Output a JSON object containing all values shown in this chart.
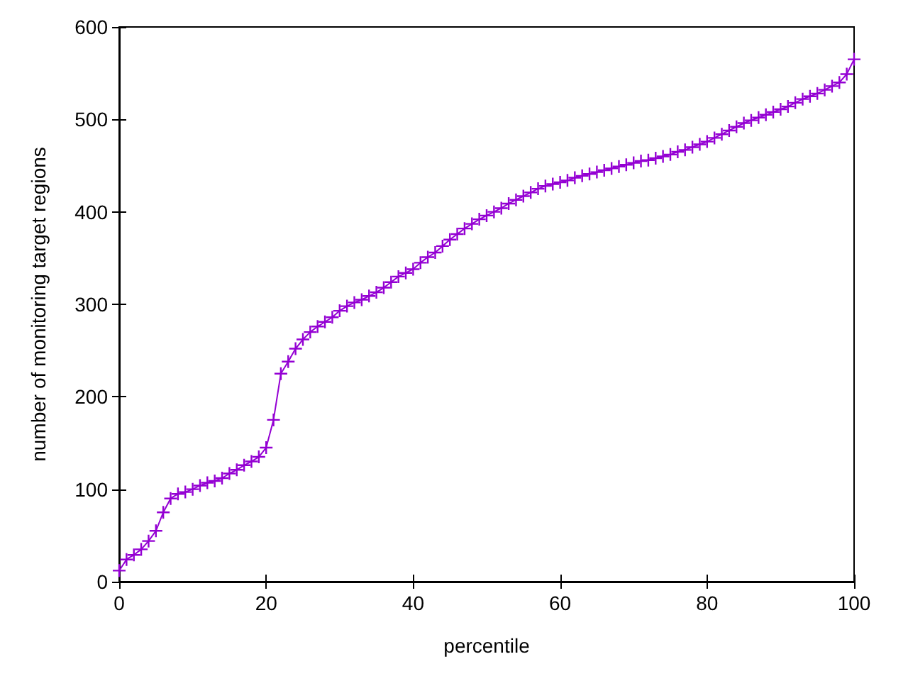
{
  "chart_data": {
    "type": "line",
    "xlabel": "percentile",
    "ylabel": "number of monitoring target regions",
    "x": [
      0,
      1,
      2,
      3,
      4,
      5,
      6,
      7,
      8,
      9,
      10,
      11,
      12,
      13,
      14,
      15,
      16,
      17,
      18,
      19,
      20,
      21,
      22,
      23,
      24,
      25,
      26,
      27,
      28,
      29,
      30,
      31,
      32,
      33,
      34,
      35,
      36,
      37,
      38,
      39,
      40,
      41,
      42,
      43,
      44,
      45,
      46,
      47,
      48,
      49,
      50,
      51,
      52,
      53,
      54,
      55,
      56,
      57,
      58,
      59,
      60,
      61,
      62,
      63,
      64,
      65,
      66,
      67,
      68,
      69,
      70,
      71,
      72,
      73,
      74,
      75,
      76,
      77,
      78,
      79,
      80,
      81,
      82,
      83,
      84,
      85,
      86,
      87,
      88,
      89,
      90,
      91,
      92,
      93,
      94,
      95,
      96,
      97,
      98,
      99,
      100
    ],
    "series": [
      {
        "color": "#9400d3",
        "values": [
          12,
          24,
          29,
          35,
          44,
          55,
          75,
          90,
          95,
          97,
          100,
          104,
          107,
          109,
          112,
          117,
          121,
          126,
          130,
          135,
          145,
          175,
          225,
          238,
          252,
          262,
          270,
          276,
          281,
          286,
          293,
          298,
          302,
          305,
          309,
          313,
          318,
          324,
          330,
          334,
          338,
          345,
          351,
          356,
          363,
          370,
          376,
          382,
          387,
          392,
          396,
          400,
          404,
          409,
          413,
          417,
          421,
          425,
          428,
          430,
          432,
          434,
          437,
          439,
          441,
          443,
          445,
          447,
          449,
          451,
          453,
          455,
          456,
          458,
          460,
          462,
          465,
          467,
          470,
          473,
          476,
          480,
          484,
          488,
          492,
          496,
          499,
          502,
          505,
          508,
          511,
          514,
          518,
          522,
          525,
          528,
          532,
          536,
          540,
          549,
          565
        ]
      }
    ],
    "xlim": [
      0,
      100
    ],
    "xticks": [
      0,
      20,
      40,
      60,
      80,
      100
    ],
    "ylim": [
      0,
      600
    ],
    "yticks": [
      0,
      100,
      200,
      300,
      400,
      500,
      600
    ],
    "marker": "cross",
    "line_style": "solid"
  }
}
